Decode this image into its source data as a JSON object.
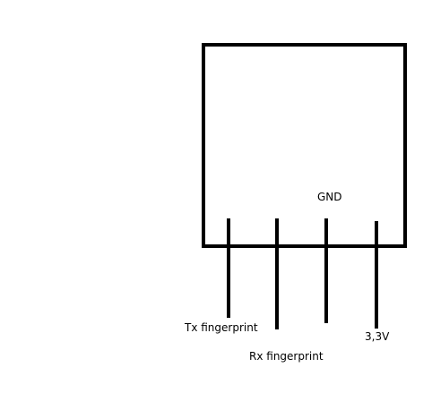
{
  "diagram": {
    "labels": {
      "gnd": "GND",
      "tx": "Tx fingerprint",
      "rx": "Rx fingerprint",
      "v33": "3,3V"
    },
    "colors": {
      "stroke": "#000000",
      "background": "#ffffff"
    }
  }
}
